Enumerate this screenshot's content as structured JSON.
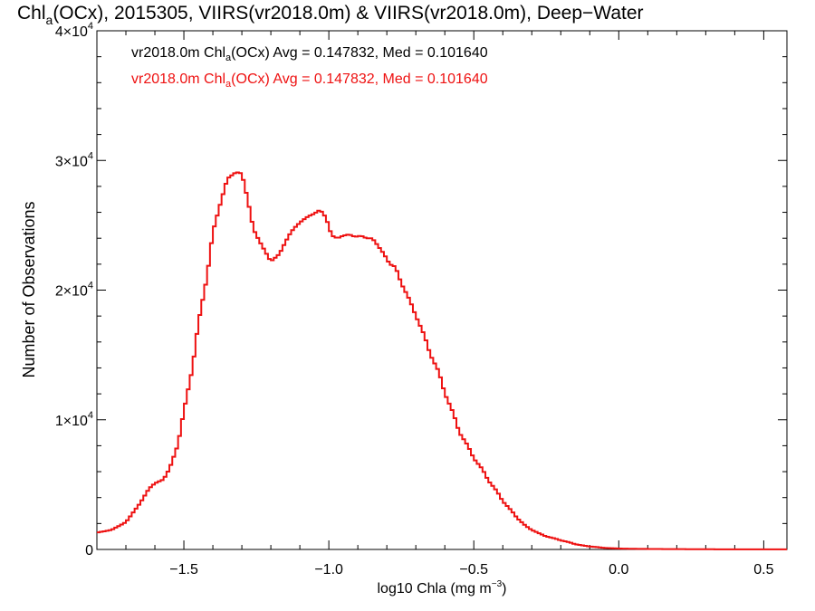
{
  "chart_data": {
    "type": "line",
    "title": {
      "main": "Chl",
      "sub": "a",
      "rest": "(OCx), 2015305, VIIRS(vr2018.0m) & VIIRS(vr2018.0m), Deep−Water"
    },
    "xlabel": {
      "main": "log10 Chla (mg m",
      "sup": "−3",
      "end": ")"
    },
    "ylabel": "Number of Observations",
    "xlim": [
      -1.8,
      0.58
    ],
    "ylim": [
      0,
      40000
    ],
    "x_ticks": [
      {
        "value": -1.5,
        "label": "−1.5"
      },
      {
        "value": -1.0,
        "label": "−1.0"
      },
      {
        "value": -0.5,
        "label": "−0.5"
      },
      {
        "value": 0.0,
        "label": "0.0"
      },
      {
        "value": 0.5,
        "label": "0.5"
      }
    ],
    "y_ticks": [
      {
        "value": 0,
        "base": "0",
        "exp": ""
      },
      {
        "value": 10000,
        "base": "1×10",
        "exp": "4"
      },
      {
        "value": 20000,
        "base": "2×10",
        "exp": "4"
      },
      {
        "value": 30000,
        "base": "3×10",
        "exp": "4"
      },
      {
        "value": 40000,
        "base": "4×10",
        "exp": "4"
      }
    ],
    "annotations": [
      {
        "id": "black",
        "color": "#000000",
        "pre": "vr2018.0m Chl",
        "sub": "a",
        "post": "(OCx) Avg = 0.147832, Med = 0.101640"
      },
      {
        "id": "red",
        "color": "#ee1111",
        "pre": "vr2018.0m Chl",
        "sub": "a",
        "post": "(OCx) Avg = 0.147832, Med = 0.101640"
      }
    ],
    "series": [
      {
        "color": "#ee1111",
        "style": "step",
        "x": [
          -1.8,
          -1.75,
          -1.7,
          -1.65,
          -1.62,
          -1.6,
          -1.57,
          -1.55,
          -1.52,
          -1.5,
          -1.47,
          -1.45,
          -1.42,
          -1.4,
          -1.37,
          -1.35,
          -1.32,
          -1.3,
          -1.28,
          -1.26,
          -1.24,
          -1.22,
          -1.2,
          -1.17,
          -1.15,
          -1.13,
          -1.11,
          -1.09,
          -1.07,
          -1.05,
          -1.03,
          -1.01,
          -0.99,
          -0.97,
          -0.95,
          -0.93,
          -0.91,
          -0.89,
          -0.87,
          -0.85,
          -0.83,
          -0.81,
          -0.79,
          -0.77,
          -0.75,
          -0.72,
          -0.7,
          -0.67,
          -0.65,
          -0.62,
          -0.6,
          -0.57,
          -0.55,
          -0.52,
          -0.5,
          -0.47,
          -0.45,
          -0.42,
          -0.4,
          -0.37,
          -0.35,
          -0.32,
          -0.3,
          -0.27,
          -0.25,
          -0.22,
          -0.2,
          -0.17,
          -0.15,
          -0.12,
          -0.1,
          -0.07,
          -0.05,
          -0.02,
          0.0,
          0.05,
          0.1,
          0.15,
          0.2,
          0.25,
          0.3,
          0.35,
          0.4,
          0.45,
          0.5,
          0.55
        ],
        "y": [
          1300,
          1500,
          2100,
          3600,
          4700,
          5100,
          5400,
          6200,
          8100,
          10700,
          14000,
          17500,
          21000,
          24500,
          27000,
          28600,
          29100,
          29000,
          27000,
          24700,
          23800,
          23000,
          22200,
          22800,
          23700,
          24500,
          25000,
          25400,
          25700,
          25900,
          26200,
          25600,
          24200,
          24000,
          24200,
          24300,
          24100,
          24200,
          24000,
          24000,
          23400,
          22800,
          22000,
          21800,
          20500,
          19200,
          18000,
          16500,
          15000,
          13700,
          12000,
          10500,
          9000,
          8000,
          7000,
          6200,
          5300,
          4500,
          3700,
          3000,
          2400,
          1800,
          1500,
          1200,
          1000,
          850,
          700,
          550,
          400,
          300,
          230,
          170,
          120,
          90,
          70,
          50,
          40,
          30,
          25,
          20,
          15,
          12,
          10,
          8,
          6,
          5
        ]
      }
    ]
  }
}
